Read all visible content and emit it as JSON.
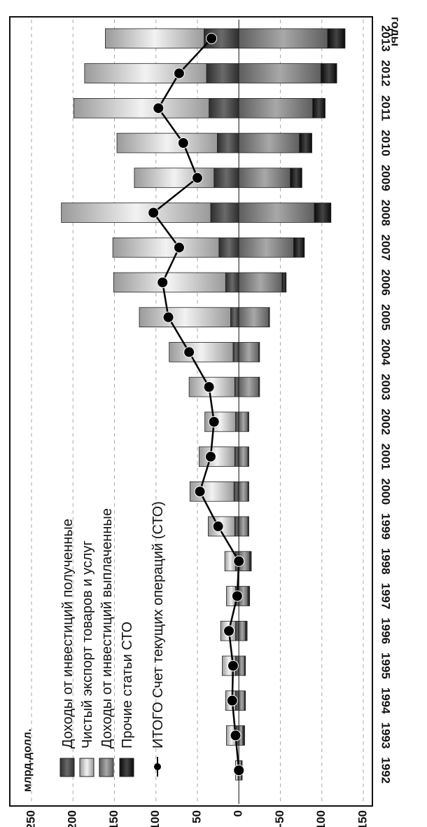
{
  "chart_data": {
    "type": "bar",
    "orientation": "rotated 90 degrees clockwise",
    "unit_label": "млрд.долл.",
    "xlabel": "годы",
    "ylim": [
      -150,
      250
    ],
    "yticks": [
      250,
      200,
      150,
      100,
      50,
      0,
      -50,
      -100,
      -150
    ],
    "grid": true,
    "legend_position": "top-left",
    "categories": [
      "1992",
      "1993",
      "1994",
      "1995",
      "1996",
      "1997",
      "1998",
      "1999",
      "2000",
      "2001",
      "2002",
      "2003",
      "2004",
      "2005",
      "2006",
      "2007",
      "2008",
      "2009",
      "2010",
      "2011",
      "2012",
      "2013"
    ],
    "series": [
      {
        "name": "Доходы от инвестиций полученные",
        "color": "#4a4a4a",
        "values": [
          1,
          3,
          4,
          4,
          4,
          4,
          4,
          5,
          6,
          5,
          4,
          5,
          7,
          10,
          16,
          24,
          34,
          30,
          26,
          36,
          39,
          42
        ]
      },
      {
        "name": "Чистый экспорт товаров и услуг",
        "color": "#cfcfcf",
        "values": [
          3,
          12,
          12,
          16,
          18,
          11,
          13,
          32,
          53,
          43,
          37,
          55,
          77,
          110,
          135,
          128,
          180,
          96,
          121,
          163,
          147,
          119
        ]
      },
      {
        "name": "Доходы от инвестиций выплаченные",
        "color": "#8c8c8c",
        "values": [
          -3,
          -5,
          -7,
          -7,
          -8,
          -11,
          -13,
          -11,
          -11,
          -11,
          -11,
          -24,
          -24,
          -36,
          -52,
          -66,
          -91,
          -62,
          -73,
          -89,
          -99,
          -107
        ]
      },
      {
        "name": "Прочие статьи СТО",
        "color": "#1e1e1e",
        "values": [
          -1,
          -2,
          -1,
          -1,
          -2,
          -2,
          -2,
          -1,
          -1,
          -1,
          -1,
          -1,
          -1,
          -1,
          -5,
          -13,
          -20,
          -14,
          -15,
          -15,
          -19,
          -21
        ]
      }
    ],
    "line": {
      "name": "ИТОГО Счет текущих операций (СТО)",
      "values": [
        0,
        4,
        8,
        7,
        12,
        2,
        0,
        25,
        47,
        34,
        30,
        36,
        60,
        85,
        92,
        72,
        103,
        50,
        67,
        97,
        72,
        33
      ]
    }
  }
}
